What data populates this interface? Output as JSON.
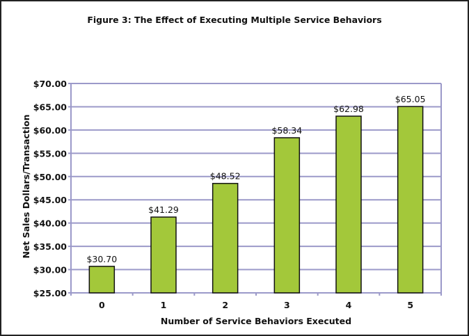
{
  "chart_data": {
    "type": "bar",
    "title": "Figure 3: The Effect of Executing Multiple Service Behaviors",
    "xlabel": "Number of Service Behaviors Executed",
    "ylabel": "Net Sales Dollars/Transaction",
    "categories": [
      "0",
      "1",
      "2",
      "3",
      "4",
      "5"
    ],
    "values": [
      30.7,
      41.29,
      48.52,
      58.34,
      62.98,
      65.05
    ],
    "data_labels": [
      "$30.70",
      "$41.29",
      "$48.52",
      "$58.34",
      "$62.98",
      "$65.05"
    ],
    "ylim": [
      25,
      70
    ],
    "yticks": [
      25,
      30,
      35,
      40,
      45,
      50,
      55,
      60,
      65,
      70
    ],
    "ytick_labels": [
      "$25.00",
      "$30.00",
      "$35.00",
      "$40.00",
      "$45.00",
      "$50.00",
      "$55.00",
      "$60.00",
      "$65.00",
      "$70.00"
    ],
    "grid": true,
    "legend": "none",
    "colors": {
      "bar": "#a3c83a",
      "grid": "#9b99c9",
      "bar_edge": "#111111"
    }
  }
}
